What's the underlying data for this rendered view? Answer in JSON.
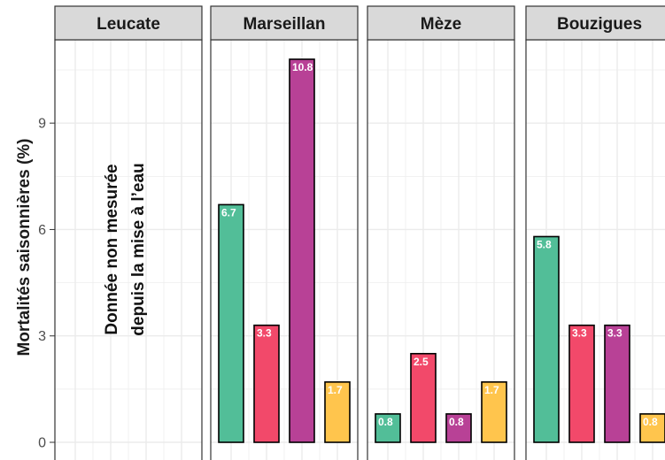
{
  "chart_data": {
    "type": "bar",
    "ylabel": "Mortalités saisonnières (%)",
    "ylim": [
      0,
      11.2
    ],
    "yticks": [
      0,
      3,
      6,
      9
    ],
    "panels": [
      {
        "name": "Leucate",
        "values": [],
        "labels": [],
        "colors": [],
        "note": [
          "Donnée non mesurée",
          "depuis la mise à l’eau"
        ]
      },
      {
        "name": "Marseillan",
        "values": [
          6.7,
          3.3,
          10.8,
          1.7
        ],
        "labels": [
          "6.7",
          "3.3",
          "10.8",
          "1.7"
        ],
        "colors": [
          "#52be98",
          "#f2496a",
          "#b84196",
          "#ffc54d"
        ]
      },
      {
        "name": "Mèze",
        "values": [
          0.8,
          2.5,
          0.8,
          1.7
        ],
        "labels": [
          "0.8",
          "2.5",
          "0.8",
          "1.7"
        ],
        "colors": [
          "#52be98",
          "#f2496a",
          "#b84196",
          "#ffc54d"
        ]
      },
      {
        "name": "Bouzigues",
        "values": [
          5.8,
          3.3,
          3.3,
          0.8
        ],
        "labels": [
          "5.8",
          "3.3",
          "3.3",
          "0.8"
        ],
        "colors": [
          "#52be98",
          "#f2496a",
          "#b84196",
          "#ffc54d"
        ]
      }
    ],
    "grid": true,
    "colors": {
      "panel_background": "#ffffff",
      "panel_border": "#333333",
      "strip_background": "#d9d9d9",
      "gridline": "#ebebeb",
      "bar_outline": "#000000"
    }
  }
}
